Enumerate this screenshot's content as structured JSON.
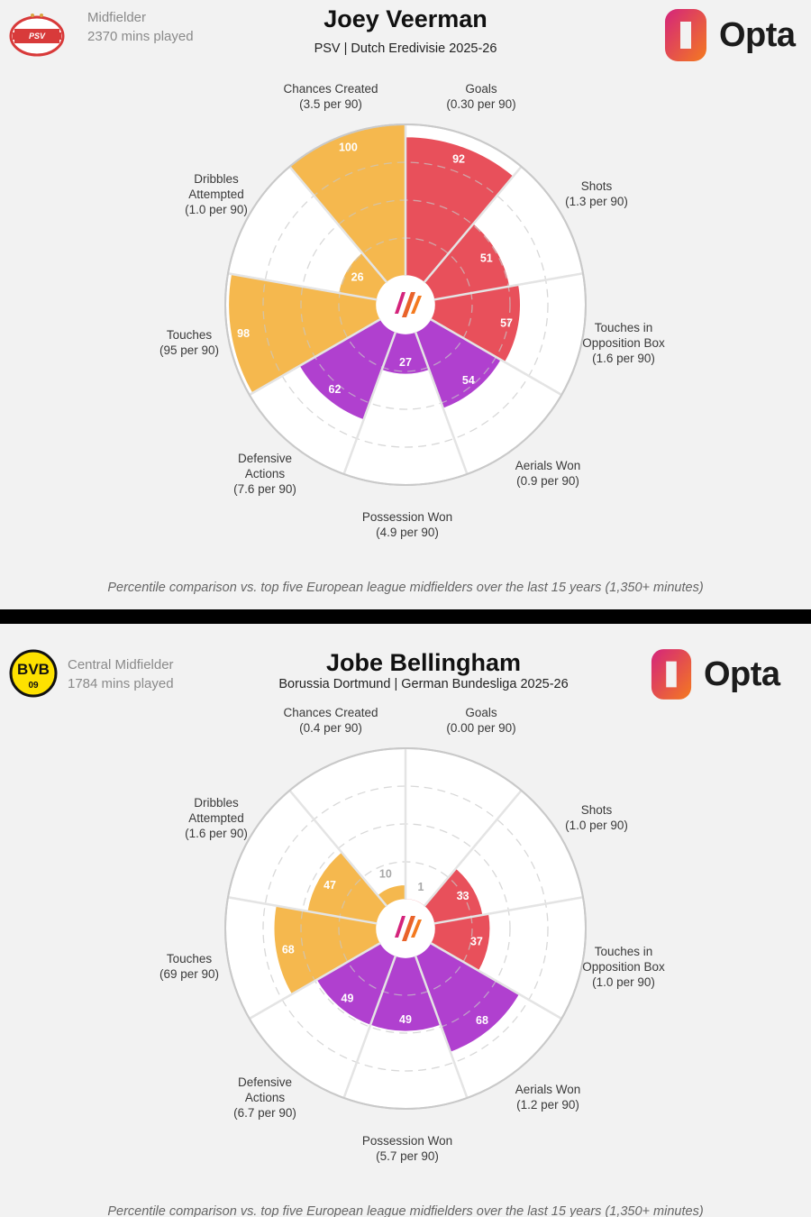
{
  "panels": [
    {
      "player_name": "Joey Veerman",
      "position": "Midfielder",
      "minutes": "2370 mins played",
      "subtitle": "PSV | Dutch Eredivisie 2025-26",
      "club_badge": "psv-badge",
      "brand": "Opta",
      "footnote": "Percentile comparison vs. top five European league midfielders over the last 15 years (1,350+ minutes)"
    },
    {
      "player_name": "Jobe Bellingham",
      "position": "Central Midfielder",
      "minutes": "1784 mins played",
      "subtitle": "Borussia Dortmund | German Bundesliga 2025-26",
      "club_badge": "bvb-badge",
      "brand": "Opta",
      "footnote": "Percentile comparison vs. top five European league midfielders over the last 15 years (1,350+ minutes)"
    }
  ],
  "colors": {
    "attacking": "#e8505b",
    "defending": "#b040cf",
    "possession": "#f5b84e",
    "background": "#f2f2f2"
  },
  "chart_data": [
    {
      "type": "polar-bar",
      "player": "Joey Veerman",
      "metric": "percentile",
      "rlim": [
        0,
        100
      ],
      "categories": [
        {
          "label": [
            "Goals",
            "(0.30 per 90)"
          ],
          "value": 92,
          "group": "attacking"
        },
        {
          "label": [
            "Shots",
            "(1.3 per 90)"
          ],
          "value": 51,
          "group": "attacking"
        },
        {
          "label": [
            "Touches in",
            "Opposition Box",
            "(1.6 per 90)"
          ],
          "value": 57,
          "group": "attacking"
        },
        {
          "label": [
            "Aerials Won",
            "(0.9 per 90)"
          ],
          "value": 54,
          "group": "defending"
        },
        {
          "label": [
            "Possession Won",
            "(4.9 per 90)"
          ],
          "value": 27,
          "group": "defending"
        },
        {
          "label": [
            "Defensive",
            "Actions",
            "(7.6 per 90)"
          ],
          "value": 62,
          "group": "defending"
        },
        {
          "label": [
            "Touches",
            "(95 per 90)"
          ],
          "value": 98,
          "group": "possession"
        },
        {
          "label": [
            "Dribbles",
            "Attempted",
            "(1.0 per 90)"
          ],
          "value": 26,
          "group": "possession"
        },
        {
          "label": [
            "Chances Created",
            "(3.5 per 90)"
          ],
          "value": 100,
          "group": "possession"
        }
      ]
    },
    {
      "type": "polar-bar",
      "player": "Jobe Bellingham",
      "metric": "percentile",
      "rlim": [
        0,
        100
      ],
      "categories": [
        {
          "label": [
            "Goals",
            "(0.00 per 90)"
          ],
          "value": 1,
          "group": "attacking"
        },
        {
          "label": [
            "Shots",
            "(1.0 per 90)"
          ],
          "value": 33,
          "group": "attacking"
        },
        {
          "label": [
            "Touches in",
            "Opposition Box",
            "(1.0 per 90)"
          ],
          "value": 37,
          "group": "attacking"
        },
        {
          "label": [
            "Aerials Won",
            "(1.2 per 90)"
          ],
          "value": 68,
          "group": "defending"
        },
        {
          "label": [
            "Possession Won",
            "(5.7 per 90)"
          ],
          "value": 49,
          "group": "defending"
        },
        {
          "label": [
            "Defensive",
            "Actions",
            "(6.7 per 90)"
          ],
          "value": 49,
          "group": "defending"
        },
        {
          "label": [
            "Touches",
            "(69 per 90)"
          ],
          "value": 68,
          "group": "possession"
        },
        {
          "label": [
            "Dribbles",
            "Attempted",
            "(1.6 per 90)"
          ],
          "value": 47,
          "group": "possession"
        },
        {
          "label": [
            "Chances Created",
            "(0.4 per 90)"
          ],
          "value": 10,
          "group": "possession"
        }
      ]
    }
  ]
}
